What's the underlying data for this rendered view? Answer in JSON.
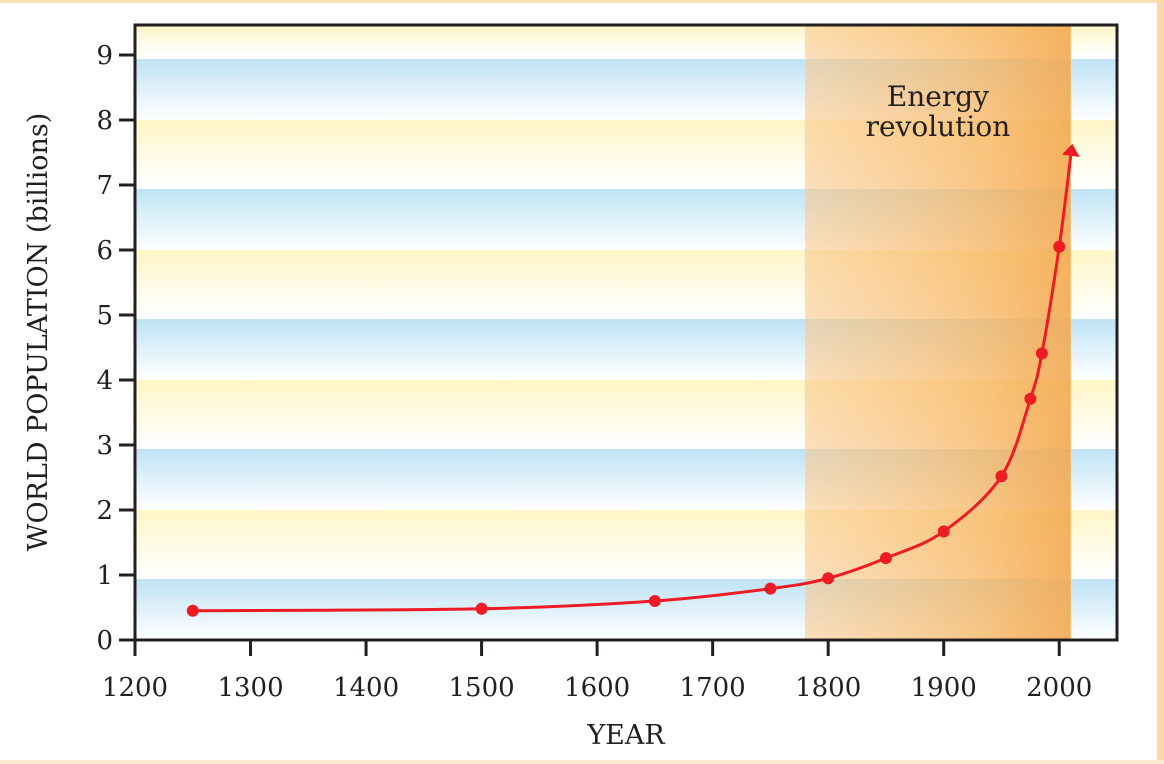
{
  "chart_data": {
    "type": "line",
    "title": "",
    "xlabel": "YEAR",
    "ylabel": "WORLD POPULATION (billions)",
    "xlim": [
      1200,
      2050
    ],
    "ylim": [
      0,
      9.4
    ],
    "xticks": [
      1200,
      1300,
      1400,
      1500,
      1600,
      1700,
      1800,
      1900,
      2000
    ],
    "yticks": [
      0,
      1,
      2,
      3,
      4,
      5,
      6,
      7,
      8,
      9
    ],
    "series": [
      {
        "name": "World population",
        "color": "#ed1c24",
        "x": [
          1250,
          1500,
          1650,
          1750,
          1800,
          1850,
          1900,
          1950,
          1975,
          1985,
          2000
        ],
        "y": [
          0.45,
          0.48,
          0.6,
          0.79,
          0.95,
          1.26,
          1.67,
          2.52,
          3.71,
          4.41,
          6.05
        ],
        "arrow_to": [
          2010,
          7.45
        ]
      }
    ],
    "annotations": [
      {
        "text_line1": "Energy",
        "text_line2": "revolution",
        "x_range": [
          1780,
          2010
        ],
        "color": "#f7b766"
      }
    ],
    "grid": false,
    "band_colors": {
      "blue": "#bfe3f5",
      "yellow": "#fff6c8"
    }
  }
}
